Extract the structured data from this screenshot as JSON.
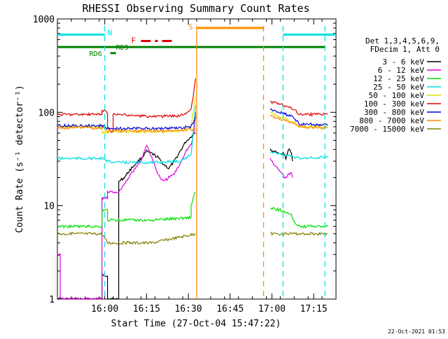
{
  "footer_date": "22-Oct-2021 01:53",
  "chart_data": {
    "type": "line",
    "title": "RHESSI Observing Summary Count Rates",
    "xlabel": "Start Time (27-Oct-04 15:47:22)",
    "ylabel": "Count Rate (s⁻¹ detector⁻¹)",
    "y_scale": "log",
    "ylim": [
      1,
      1000
    ],
    "xlim_min": [
      -4,
      96
    ],
    "x_ticks": [
      {
        "t": 13,
        "label": "16:00"
      },
      {
        "t": 28,
        "label": "16:15"
      },
      {
        "t": 43,
        "label": "16:30"
      },
      {
        "t": 58,
        "label": "16:45"
      },
      {
        "t": 73,
        "label": "17:00"
      },
      {
        "t": 88,
        "label": "17:15"
      }
    ],
    "y_ticks": [
      {
        "v": 1,
        "label": "1"
      },
      {
        "v": 10,
        "label": "10"
      },
      {
        "v": 100,
        "label": "100"
      },
      {
        "v": 1000,
        "label": "1000"
      }
    ],
    "grid": false,
    "legend_position": "right",
    "legend_header": [
      "Det 1,3,4,5,6,9,",
      "FDecim 1, Att 0"
    ],
    "series": [
      {
        "name": "3 - 6 keV",
        "color": "#000000",
        "points": [
          [
            -4,
            1
          ],
          [
            12,
            1
          ],
          [
            12,
            1.8
          ],
          [
            14,
            1.8
          ],
          [
            14,
            1
          ],
          [
            18,
            1
          ],
          [
            18,
            18
          ],
          [
            20,
            20
          ],
          [
            22,
            24
          ],
          [
            24,
            28
          ],
          [
            26,
            32
          ],
          [
            28,
            38
          ],
          [
            30,
            36
          ],
          [
            32,
            33
          ],
          [
            34,
            28
          ],
          [
            36,
            25
          ],
          [
            38,
            30
          ],
          [
            40,
            38
          ],
          [
            42,
            48
          ],
          [
            44,
            55
          ],
          [
            45,
            60
          ],
          [
            45.6,
            60
          ]
        ],
        "points2": [
          [
            72.4,
            40
          ],
          [
            74,
            38
          ],
          [
            76,
            35
          ],
          [
            77,
            37
          ],
          [
            78,
            32
          ],
          [
            79,
            40
          ],
          [
            80,
            38
          ],
          [
            80.4,
            30
          ]
        ]
      },
      {
        "name": "6 - 12 keV",
        "color": "#e000e0",
        "points": [
          [
            -4,
            3
          ],
          [
            -3,
            3
          ],
          [
            -3,
            1
          ],
          [
            12,
            1
          ],
          [
            12,
            12
          ],
          [
            14,
            12
          ],
          [
            14,
            14
          ],
          [
            18,
            14
          ],
          [
            20,
            17
          ],
          [
            22,
            21
          ],
          [
            24,
            25
          ],
          [
            26,
            30
          ],
          [
            28,
            45
          ],
          [
            30,
            32
          ],
          [
            32,
            22
          ],
          [
            34,
            18
          ],
          [
            36,
            20
          ],
          [
            38,
            22
          ],
          [
            40,
            28
          ],
          [
            42,
            38
          ],
          [
            44,
            45
          ],
          [
            45,
            60
          ],
          [
            45.6,
            100
          ]
        ],
        "points2": [
          [
            72.4,
            32
          ],
          [
            74,
            27
          ],
          [
            76,
            23
          ],
          [
            77,
            21
          ],
          [
            78,
            20
          ],
          [
            79,
            22
          ],
          [
            80,
            22
          ],
          [
            80.4,
            20
          ]
        ]
      },
      {
        "name": "12 - 25 keV",
        "color": "#00e000",
        "points": [
          [
            -4,
            6
          ],
          [
            12,
            6
          ],
          [
            12,
            9
          ],
          [
            14,
            9
          ],
          [
            14,
            7
          ],
          [
            18,
            7
          ],
          [
            18,
            7
          ],
          [
            30,
            7
          ],
          [
            44,
            7.5
          ],
          [
            44,
            10
          ],
          [
            45,
            13
          ],
          [
            45.6,
            14
          ]
        ],
        "points2": [
          [
            72.4,
            9.5
          ],
          [
            76,
            9
          ],
          [
            78,
            8.5
          ],
          [
            80,
            8
          ],
          [
            80.4,
            7
          ],
          [
            83,
            6
          ],
          [
            93,
            6
          ]
        ]
      },
      {
        "name": "25 - 50 keV",
        "color": "#00e0e0",
        "points": [
          [
            -4,
            32
          ],
          [
            12,
            32
          ],
          [
            14,
            30
          ],
          [
            18,
            29
          ],
          [
            30,
            29
          ],
          [
            40,
            30
          ],
          [
            44,
            35
          ],
          [
            45.6,
            120
          ]
        ],
        "points2": [
          [
            72.4,
            38
          ],
          [
            76,
            36
          ],
          [
            80,
            34
          ],
          [
            83,
            32
          ],
          [
            93,
            33
          ]
        ]
      },
      {
        "name": "50 - 100 keV",
        "color": "#e0e000",
        "points": [
          [
            -4,
            70
          ],
          [
            12,
            70
          ],
          [
            12,
            60
          ],
          [
            14,
            62
          ],
          [
            30,
            62
          ],
          [
            40,
            63
          ],
          [
            44,
            70
          ],
          [
            45.6,
            150
          ]
        ],
        "points2": [
          [
            72.4,
            100
          ],
          [
            76,
            90
          ],
          [
            80,
            80
          ],
          [
            83,
            70
          ],
          [
            93,
            72
          ]
        ]
      },
      {
        "name": "100 - 300 keV",
        "color": "#e00000",
        "points": [
          [
            -4,
            95
          ],
          [
            12,
            95
          ],
          [
            12,
            105
          ],
          [
            14,
            100
          ],
          [
            14,
            70
          ],
          [
            15,
            62
          ],
          [
            16,
            62
          ],
          [
            16,
            95
          ],
          [
            30,
            90
          ],
          [
            40,
            92
          ],
          [
            44,
            105
          ],
          [
            45.6,
            230
          ]
        ],
        "points2": [
          [
            72.4,
            130
          ],
          [
            76,
            122
          ],
          [
            80,
            112
          ],
          [
            83,
            95
          ],
          [
            93,
            95
          ]
        ]
      },
      {
        "name": "300 - 800 keV",
        "color": "#0000e0",
        "points": [
          [
            -4,
            72
          ],
          [
            12,
            72
          ],
          [
            14,
            67
          ],
          [
            30,
            67
          ],
          [
            40,
            68
          ],
          [
            44,
            70
          ],
          [
            45.6,
            90
          ]
        ],
        "points2": [
          [
            72.4,
            108
          ],
          [
            76,
            100
          ],
          [
            80,
            90
          ],
          [
            83,
            75
          ],
          [
            93,
            73
          ]
        ]
      },
      {
        "name": "800 - 7000 keV",
        "color": "#ff8c00",
        "points": [
          [
            -4,
            68
          ],
          [
            12,
            68
          ],
          [
            14,
            63
          ],
          [
            30,
            63
          ],
          [
            40,
            64
          ],
          [
            45.6,
            66
          ]
        ],
        "points2": [
          [
            72.4,
            92
          ],
          [
            76,
            85
          ],
          [
            80,
            78
          ],
          [
            83,
            70
          ],
          [
            93,
            68
          ]
        ]
      },
      {
        "name": "7000 - 15000 keV",
        "color": "#808000",
        "points": [
          [
            -4,
            5
          ],
          [
            12,
            5
          ],
          [
            14,
            4
          ],
          [
            30,
            4
          ],
          [
            45.6,
            5
          ]
        ],
        "points2": [
          [
            72.4,
            5
          ],
          [
            76,
            5
          ],
          [
            80,
            5
          ],
          [
            83,
            5
          ],
          [
            93,
            5
          ]
        ]
      }
    ],
    "annotations": {
      "N": {
        "label": "N",
        "color": "#00e0e0",
        "bars": [
          [
            -4,
            13
          ],
          [
            77,
            96
          ]
        ],
        "y": 680
      },
      "S": {
        "label": "S",
        "color": "#ff8c00",
        "bar": [
          46,
          70
        ],
        "y": 800
      },
      "F": {
        "label": "F",
        "color": "#e00000",
        "bar": [
          26,
          38
        ],
        "y": 580
      },
      "RD9": {
        "label": "RD9",
        "color": "#008000"
      },
      "RD6": {
        "label": "RD6",
        "color": "#008000",
        "bar": [
          15,
          17
        ],
        "y": 430
      },
      "green_line_y": 500,
      "orange_vlines": [
        46,
        70
      ],
      "cyan_vlines": [
        13,
        77,
        92
      ]
    }
  }
}
